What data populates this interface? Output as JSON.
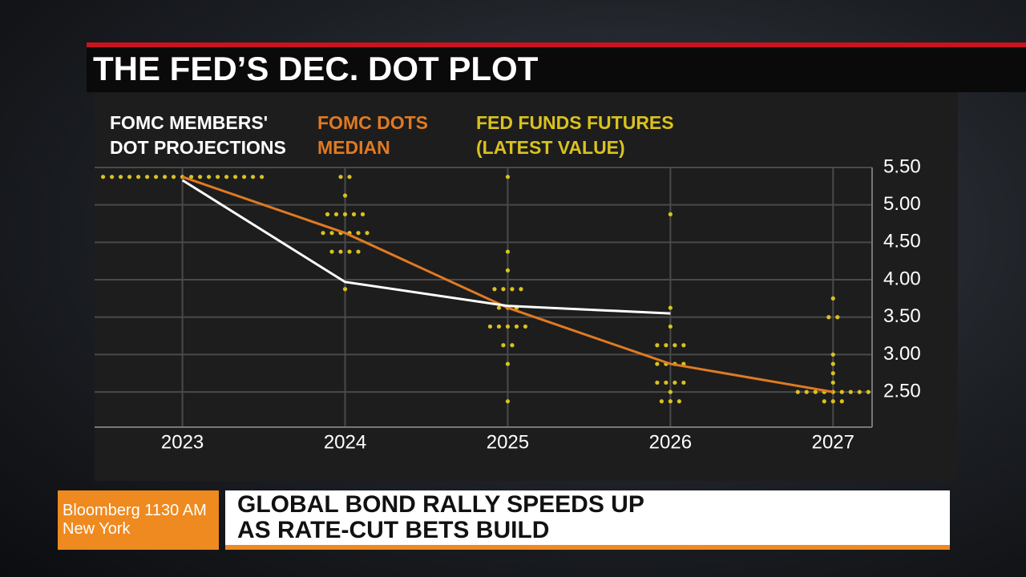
{
  "chart_data": {
    "type": "dot-plot",
    "title": "THE FED’S DEC. DOT PLOT",
    "xlim": [
      2022.46,
      2027.24
    ],
    "xticks": [
      2023,
      2024,
      2025,
      2026,
      2027
    ],
    "ylim": [
      2.03,
      5.5
    ],
    "yticks": [
      {
        "value": 2.5,
        "label": "2.50"
      },
      {
        "value": 3,
        "label": "3.00"
      },
      {
        "value": 3.5,
        "label": "3.50"
      },
      {
        "value": 4,
        "label": "4.00"
      },
      {
        "value": 4.5,
        "label": "4.50"
      },
      {
        "value": 5,
        "label": "5.00"
      },
      {
        "value": 5.5,
        "label": "5.50"
      }
    ],
    "grid": true,
    "series": [
      {
        "name": "FOMC MEMBERS' DOT PROJECTIONS",
        "kind": "dots",
        "color": "#d9c21f",
        "label_color": "#ffffff",
        "x": [
          2023,
          2023,
          2023,
          2023,
          2023,
          2023,
          2023,
          2023,
          2023,
          2023,
          2023,
          2023,
          2023,
          2023,
          2023,
          2023,
          2023,
          2023,
          2023,
          2024,
          2024,
          2024,
          2024,
          2024,
          2024,
          2024,
          2024,
          2024,
          2024,
          2024,
          2024,
          2024,
          2024,
          2024,
          2024,
          2024,
          2024,
          2024,
          2025,
          2025,
          2025,
          2025,
          2025,
          2025,
          2025,
          2025,
          2025,
          2025,
          2025,
          2025,
          2025,
          2025,
          2025,
          2025,
          2025,
          2025,
          2025,
          2026,
          2026,
          2026,
          2026,
          2026,
          2026,
          2026,
          2026,
          2026,
          2026,
          2026,
          2026,
          2026,
          2026,
          2026,
          2026,
          2026,
          2026,
          2026,
          2027,
          2027,
          2027,
          2027,
          2027,
          2027,
          2027,
          2027,
          2027,
          2027,
          2027,
          2027,
          2027,
          2027,
          2027,
          2027,
          2027,
          2027,
          2027
        ],
        "values": [
          5.375,
          5.375,
          5.375,
          5.375,
          5.375,
          5.375,
          5.375,
          5.375,
          5.375,
          5.375,
          5.375,
          5.375,
          5.375,
          5.375,
          5.375,
          5.375,
          5.375,
          5.375,
          5.375,
          5.375,
          5.375,
          5.125,
          4.875,
          4.875,
          4.875,
          4.875,
          4.875,
          4.625,
          4.625,
          4.625,
          4.625,
          4.625,
          4.625,
          4.375,
          4.375,
          4.375,
          4.375,
          3.875,
          5.375,
          4.375,
          4.125,
          3.875,
          3.875,
          3.875,
          3.875,
          3.625,
          3.625,
          3.625,
          3.375,
          3.375,
          3.375,
          3.375,
          3.375,
          3.125,
          3.125,
          2.875,
          2.375,
          4.875,
          3.625,
          3.375,
          3.125,
          3.125,
          3.125,
          3.125,
          2.875,
          2.875,
          2.875,
          2.875,
          2.625,
          2.625,
          2.625,
          2.625,
          2.5,
          2.375,
          2.375,
          2.375,
          3.75,
          3.5,
          3.5,
          3.0,
          2.875,
          2.75,
          2.625,
          2.5,
          2.5,
          2.5,
          2.5,
          2.5,
          2.5,
          2.5,
          2.5,
          2.5,
          2.375,
          2.375,
          2.375
        ]
      },
      {
        "name": "FOMC DOTS MEDIAN",
        "kind": "line",
        "color": "#e07a22",
        "label_color": "#e07a22",
        "x": [
          2023,
          2024,
          2025,
          2026,
          2027
        ],
        "values": [
          5.375,
          4.625,
          3.625,
          2.875,
          2.5
        ]
      },
      {
        "name": "FED FUNDS FUTURES (LATEST VALUE)",
        "kind": "line",
        "color": "#ffffff",
        "label_color": "#d9c21f",
        "x": [
          2023,
          2024,
          2025,
          2026,
          2027
        ],
        "values": [
          5.33,
          3.97,
          3.65,
          3.55,
          null
        ]
      }
    ]
  },
  "lower_third": {
    "station": "Bloomberg 1130 AM",
    "city": "New York",
    "headline": "GLOBAL BOND RALLY SPEEDS UP AS RATE-CUT BETS BUILD"
  }
}
